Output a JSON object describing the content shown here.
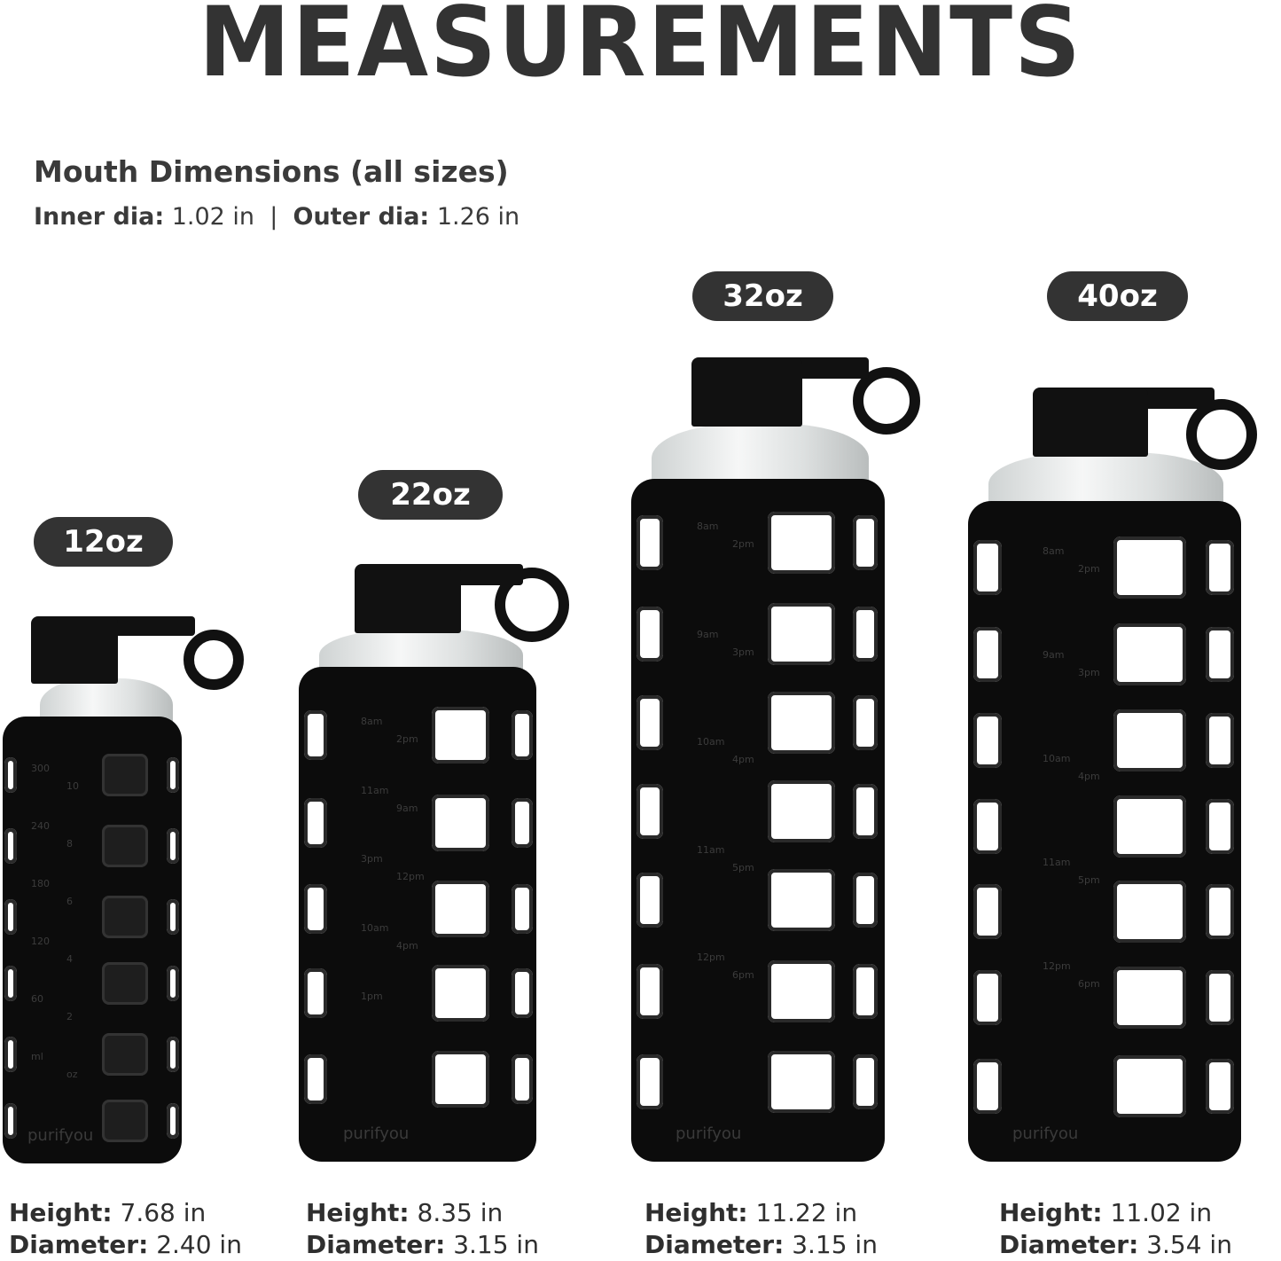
{
  "title": "MEASUREMENTS",
  "mouth": {
    "heading": "Mouth Dimensions (all sizes)",
    "inner_label": "Inner dia:",
    "inner_value": "1.02 in",
    "separator": "|",
    "outer_label": "Outer dia:",
    "outer_value": "1.26 in"
  },
  "bottles": [
    {
      "size": "12oz",
      "height_label": "Height:",
      "height": "7.68 in",
      "diameter_label": "Diameter:",
      "diameter": "2.40 in",
      "brand": "purifyou",
      "markings": [
        "300",
        "10",
        "240",
        "8",
        "180",
        "6",
        "120",
        "4",
        "60",
        "2",
        "ml",
        "oz"
      ]
    },
    {
      "size": "22oz",
      "height_label": "Height:",
      "height": "8.35 in",
      "diameter_label": "Diameter:",
      "diameter": "3.15 in",
      "brand": "purifyou",
      "markings": [
        "8am",
        "2pm",
        "11am",
        "9am",
        "3pm",
        "12pm",
        "10am",
        "4pm",
        "1pm"
      ]
    },
    {
      "size": "32oz",
      "height_label": "Height:",
      "height": "11.22 in",
      "diameter_label": "Diameter:",
      "diameter": "3.15 in",
      "brand": "purifyou",
      "markings": [
        "8am",
        "2pm",
        "9am",
        "3pm",
        "10am",
        "4pm",
        "11am",
        "5pm",
        "12pm",
        "6pm"
      ]
    },
    {
      "size": "40oz",
      "height_label": "Height:",
      "height": "11.02 in",
      "diameter_label": "Diameter:",
      "diameter": "3.54 in",
      "brand": "purifyou",
      "markings": [
        "8am",
        "2pm",
        "9am",
        "3pm",
        "10am",
        "4pm",
        "11am",
        "5pm",
        "12pm",
        "6pm"
      ]
    }
  ],
  "colors": {
    "text": "#333333",
    "pill": "#333333",
    "sleeve": "#0c0c0c"
  }
}
